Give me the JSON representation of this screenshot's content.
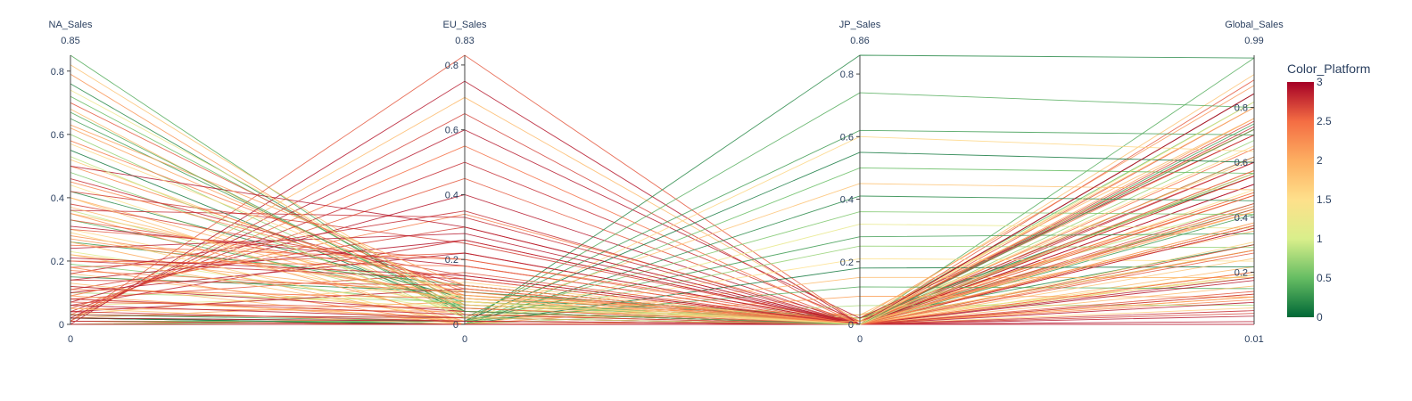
{
  "chart_data": {
    "type": "parallel_coordinates",
    "dimensions": [
      {
        "name": "NA_Sales",
        "range": [
          0,
          0.85
        ],
        "range_labels": [
          "0",
          "0.85"
        ],
        "ticks": [
          0,
          0.2,
          0.4,
          0.6,
          0.8
        ],
        "tick_labels": [
          "0",
          "0.2",
          "0.4",
          "0.6",
          "0.8"
        ],
        "tick_side": "left"
      },
      {
        "name": "EU_Sales",
        "range": [
          0,
          0.83
        ],
        "range_labels": [
          "0",
          "0.83"
        ],
        "ticks": [
          0,
          0.2,
          0.4,
          0.6,
          0.8
        ],
        "tick_labels": [
          "0",
          "0.2",
          "0.4",
          "0.6",
          "0.8"
        ],
        "tick_side": "left"
      },
      {
        "name": "JP_Sales",
        "range": [
          0,
          0.86
        ],
        "range_labels": [
          "0",
          "0.86"
        ],
        "ticks": [
          0,
          0.2,
          0.4,
          0.6,
          0.8
        ],
        "tick_labels": [
          "0",
          "0.2",
          "0.4",
          "0.6",
          "0.8"
        ],
        "tick_side": "left"
      },
      {
        "name": "Global_Sales",
        "range": [
          0.01,
          0.99
        ],
        "range_labels": [
          "0.01",
          "0.99"
        ],
        "ticks": [
          0.2,
          0.4,
          0.6,
          0.8
        ],
        "tick_labels": [
          "0.2",
          "0.4",
          "0.6",
          "0.8"
        ],
        "tick_side": "left"
      }
    ],
    "line_color_dimension": "Color_Platform",
    "colorscale": "RdYlGn reversed",
    "colors": [
      "#006837",
      "#66bd63",
      "#d9ef8b",
      "#fee08b",
      "#fdae61",
      "#f46d43",
      "#a50026"
    ],
    "colorbar": {
      "title": "Color_Platform",
      "range": [
        0,
        3
      ],
      "ticks": [
        0,
        0.5,
        1,
        1.5,
        2,
        2.5,
        3
      ],
      "tick_labels": [
        "0",
        "0.5",
        "1",
        "1.5",
        "2",
        "2.5",
        "3"
      ]
    },
    "records": [
      [
        0.85,
        0.02,
        0.0,
        0.98,
        0.4
      ],
      [
        0.82,
        0.05,
        0.01,
        0.92,
        1.8
      ],
      [
        0.79,
        0.03,
        0.02,
        0.88,
        2.2
      ],
      [
        0.76,
        0.04,
        0.0,
        0.85,
        0.2
      ],
      [
        0.72,
        0.06,
        0.01,
        0.82,
        0.5
      ],
      [
        0.7,
        0.08,
        0.0,
        0.8,
        2.6
      ],
      [
        0.68,
        0.02,
        0.03,
        0.76,
        1.9
      ],
      [
        0.65,
        0.05,
        0.0,
        0.74,
        0.3
      ],
      [
        0.62,
        0.07,
        0.02,
        0.72,
        2.1
      ],
      [
        0.6,
        0.03,
        0.0,
        0.68,
        0.7
      ],
      [
        0.58,
        0.1,
        0.01,
        0.7,
        2.4
      ],
      [
        0.55,
        0.04,
        0.0,
        0.62,
        0.1
      ],
      [
        0.52,
        0.06,
        0.02,
        0.61,
        1.7
      ],
      [
        0.5,
        0.09,
        0.0,
        0.62,
        2.3
      ],
      [
        0.48,
        0.05,
        0.01,
        0.56,
        0.6
      ],
      [
        0.46,
        0.12,
        0.0,
        0.6,
        2.8
      ],
      [
        0.44,
        0.03,
        0.0,
        0.5,
        1.5
      ],
      [
        0.42,
        0.08,
        0.02,
        0.55,
        0.2
      ],
      [
        0.4,
        0.06,
        0.01,
        0.49,
        2.0
      ],
      [
        0.38,
        0.15,
        0.0,
        0.56,
        2.7
      ],
      [
        0.36,
        0.04,
        0.03,
        0.45,
        0.9
      ],
      [
        0.35,
        0.1,
        0.0,
        0.48,
        1.8
      ],
      [
        0.33,
        0.07,
        0.01,
        0.43,
        0.4
      ],
      [
        0.31,
        0.18,
        0.0,
        0.52,
        2.9
      ],
      [
        0.3,
        0.05,
        0.0,
        0.38,
        1.6
      ],
      [
        0.28,
        0.09,
        0.02,
        0.42,
        2.2
      ],
      [
        0.26,
        0.12,
        0.0,
        0.41,
        0.3
      ],
      [
        0.25,
        0.2,
        0.01,
        0.49,
        2.5
      ],
      [
        0.23,
        0.04,
        0.0,
        0.3,
        1.1
      ],
      [
        0.22,
        0.08,
        0.03,
        0.35,
        2.0
      ],
      [
        0.2,
        0.14,
        0.0,
        0.37,
        2.8
      ],
      [
        0.19,
        0.06,
        0.01,
        0.28,
        0.6
      ],
      [
        0.18,
        0.22,
        0.0,
        0.43,
        2.6
      ],
      [
        0.16,
        0.03,
        0.0,
        0.22,
        1.9
      ],
      [
        0.15,
        0.1,
        0.02,
        0.3,
        0.2
      ],
      [
        0.14,
        0.26,
        0.0,
        0.44,
        2.9
      ],
      [
        0.12,
        0.05,
        0.01,
        0.2,
        1.4
      ],
      [
        0.11,
        0.3,
        0.0,
        0.45,
        2.7
      ],
      [
        0.1,
        0.07,
        0.0,
        0.19,
        0.8
      ],
      [
        0.09,
        0.34,
        0.01,
        0.48,
        2.4
      ],
      [
        0.08,
        0.02,
        0.0,
        0.12,
        2.0
      ],
      [
        0.07,
        0.4,
        0.0,
        0.52,
        2.9
      ],
      [
        0.06,
        0.09,
        0.02,
        0.18,
        1.2
      ],
      [
        0.05,
        0.45,
        0.0,
        0.55,
        2.6
      ],
      [
        0.05,
        0.04,
        0.0,
        0.1,
        2.3
      ],
      [
        0.04,
        0.5,
        0.01,
        0.6,
        2.8
      ],
      [
        0.03,
        0.13,
        0.0,
        0.19,
        1.7
      ],
      [
        0.03,
        0.55,
        0.0,
        0.65,
        2.5
      ],
      [
        0.02,
        0.6,
        0.02,
        0.7,
        2.9
      ],
      [
        0.02,
        0.07,
        0.0,
        0.11,
        2.1
      ],
      [
        0.01,
        0.65,
        0.0,
        0.75,
        2.7
      ],
      [
        0.01,
        0.7,
        0.01,
        0.8,
        1.9
      ],
      [
        0.01,
        0.83,
        0.0,
        0.9,
        2.6
      ],
      [
        0.0,
        0.75,
        0.0,
        0.85,
        2.9
      ],
      [
        0.02,
        0.0,
        0.86,
        0.98,
        0.2
      ],
      [
        0.01,
        0.01,
        0.74,
        0.8,
        0.4
      ],
      [
        0.03,
        0.02,
        0.62,
        0.7,
        0.3
      ],
      [
        0.0,
        0.0,
        0.6,
        0.64,
        1.6
      ],
      [
        0.02,
        0.01,
        0.55,
        0.6,
        0.1
      ],
      [
        0.01,
        0.0,
        0.5,
        0.56,
        0.5
      ],
      [
        0.0,
        0.02,
        0.45,
        0.5,
        1.8
      ],
      [
        0.02,
        0.0,
        0.41,
        0.46,
        0.2
      ],
      [
        0.01,
        0.01,
        0.36,
        0.41,
        0.6
      ],
      [
        0.0,
        0.0,
        0.32,
        0.36,
        1.2
      ],
      [
        0.03,
        0.01,
        0.28,
        0.34,
        0.3
      ],
      [
        0.01,
        0.0,
        0.25,
        0.29,
        0.7
      ],
      [
        0.0,
        0.01,
        0.21,
        0.24,
        1.5
      ],
      [
        0.02,
        0.0,
        0.18,
        0.22,
        0.1
      ],
      [
        0.01,
        0.0,
        0.15,
        0.18,
        1.9
      ],
      [
        0.0,
        0.01,
        0.12,
        0.14,
        0.4
      ],
      [
        0.01,
        0.0,
        0.09,
        0.11,
        2.1
      ],
      [
        0.0,
        0.0,
        0.06,
        0.08,
        0.8
      ],
      [
        0.5,
        0.3,
        0.0,
        0.85,
        2.9
      ],
      [
        0.42,
        0.25,
        0.0,
        0.72,
        2.7
      ],
      [
        0.36,
        0.33,
        0.0,
        0.73,
        2.8
      ],
      [
        0.3,
        0.2,
        0.0,
        0.55,
        2.6
      ],
      [
        0.24,
        0.28,
        0.0,
        0.57,
        2.9
      ],
      [
        0.2,
        0.18,
        0.0,
        0.42,
        2.5
      ],
      [
        0.16,
        0.35,
        0.0,
        0.55,
        2.8
      ],
      [
        0.14,
        0.12,
        0.0,
        0.3,
        2.7
      ],
      [
        0.1,
        0.22,
        0.0,
        0.36,
        2.9
      ],
      [
        0.08,
        0.16,
        0.0,
        0.27,
        2.6
      ],
      [
        0.06,
        0.26,
        0.0,
        0.36,
        2.8
      ],
      [
        0.04,
        0.11,
        0.0,
        0.17,
        2.9
      ],
      [
        0.4,
        0.0,
        0.0,
        0.42,
        1.8
      ],
      [
        0.35,
        0.01,
        0.0,
        0.38,
        2.2
      ],
      [
        0.29,
        0.0,
        0.0,
        0.31,
        1.6
      ],
      [
        0.26,
        0.0,
        0.01,
        0.28,
        2.0
      ],
      [
        0.22,
        0.01,
        0.0,
        0.25,
        1.8
      ],
      [
        0.18,
        0.0,
        0.0,
        0.2,
        2.3
      ],
      [
        0.13,
        0.0,
        0.0,
        0.15,
        1.9
      ],
      [
        0.09,
        0.01,
        0.0,
        0.11,
        2.1
      ],
      [
        0.05,
        0.0,
        0.0,
        0.07,
        1.7
      ],
      [
        0.12,
        0.04,
        0.0,
        0.18,
        2.9
      ],
      [
        0.08,
        0.03,
        0.0,
        0.12,
        2.8
      ],
      [
        0.06,
        0.02,
        0.0,
        0.09,
        2.9
      ],
      [
        0.04,
        0.01,
        0.0,
        0.06,
        2.8
      ],
      [
        0.02,
        0.01,
        0.0,
        0.04,
        2.9
      ],
      [
        0.01,
        0.0,
        0.0,
        0.02,
        2.9
      ],
      [
        0.0,
        0.0,
        0.0,
        0.01,
        2.9
      ],
      [
        0.03,
        0.02,
        0.0,
        0.05,
        2.7
      ],
      [
        0.07,
        0.05,
        0.0,
        0.13,
        2.6
      ],
      [
        0.11,
        0.08,
        0.0,
        0.2,
        2.5
      ],
      [
        0.17,
        0.1,
        0.0,
        0.28,
        2.4
      ],
      [
        0.21,
        0.15,
        0.0,
        0.37,
        2.9
      ],
      [
        0.27,
        0.09,
        0.0,
        0.37,
        2.2
      ],
      [
        0.33,
        0.14,
        0.0,
        0.48,
        2.6
      ],
      [
        0.37,
        0.06,
        0.0,
        0.44,
        1.9
      ],
      [
        0.45,
        0.11,
        0.0,
        0.57,
        2.3
      ],
      [
        0.53,
        0.02,
        0.0,
        0.56,
        0.9
      ],
      [
        0.57,
        0.08,
        0.0,
        0.66,
        1.6
      ],
      [
        0.63,
        0.12,
        0.0,
        0.76,
        2.1
      ],
      [
        0.67,
        0.04,
        0.0,
        0.72,
        0.4
      ],
      [
        0.74,
        0.07,
        0.0,
        0.82,
        1.3
      ]
    ]
  }
}
